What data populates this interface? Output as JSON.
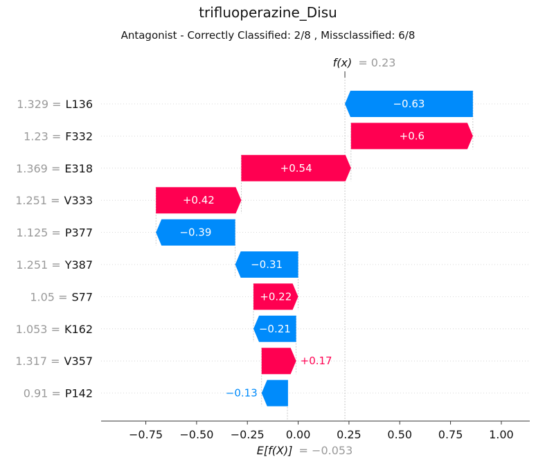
{
  "title": "trifluoperazine_Disu",
  "subtitle": "Antagonist - Correctly Classified: 2/8 , Missclassified: 6/8",
  "colors": {
    "positive": "#ff0051",
    "negative": "#008bfb",
    "muted_text": "#999999"
  },
  "chart_data": {
    "type": "waterfall",
    "fx_label": "f(x)",
    "fx_value_text": "= 0.23",
    "fx_value": 0.23,
    "base_label": "E[f(X)]",
    "base_value_text": "= −0.053",
    "base_value": -0.053,
    "xlim": [
      -0.97,
      1.14
    ],
    "xticks": [
      {
        "value": -0.75,
        "label": "−0.75"
      },
      {
        "value": -0.5,
        "label": "−0.50"
      },
      {
        "value": -0.25,
        "label": "−0.25"
      },
      {
        "value": 0.0,
        "label": "0.00"
      },
      {
        "value": 0.25,
        "label": "0.25"
      },
      {
        "value": 0.5,
        "label": "0.50"
      },
      {
        "value": 0.75,
        "label": "0.75"
      },
      {
        "value": 1.0,
        "label": "1.00"
      }
    ],
    "features": [
      {
        "value_text": "1.329 =",
        "name": "L136",
        "shap": -0.63,
        "label": "−0.63"
      },
      {
        "value_text": "1.23 =",
        "name": "F332",
        "shap": 0.6,
        "label": "+0.6"
      },
      {
        "value_text": "1.369 =",
        "name": "E318",
        "shap": 0.54,
        "label": "+0.54"
      },
      {
        "value_text": "1.251 =",
        "name": "V333",
        "shap": 0.42,
        "label": "+0.42"
      },
      {
        "value_text": "1.125 =",
        "name": "P377",
        "shap": -0.39,
        "label": "−0.39"
      },
      {
        "value_text": "1.251 =",
        "name": "Y387",
        "shap": -0.31,
        "label": "−0.31"
      },
      {
        "value_text": "1.05 =",
        "name": "S77",
        "shap": 0.22,
        "label": "+0.22"
      },
      {
        "value_text": "1.053 =",
        "name": "K162",
        "shap": -0.21,
        "label": "−0.21"
      },
      {
        "value_text": "1.317 =",
        "name": "V357",
        "shap": 0.17,
        "label": "+0.17"
      },
      {
        "value_text": "0.91 =",
        "name": "P142",
        "shap": -0.13,
        "label": "−0.13"
      }
    ]
  }
}
